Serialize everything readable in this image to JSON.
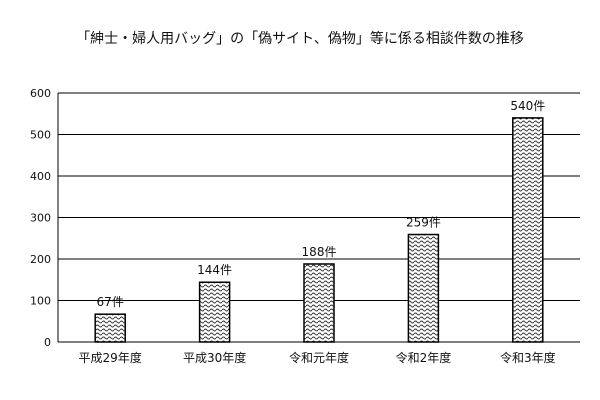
{
  "chart_data": {
    "type": "bar",
    "title": "「紳士・婦人用バッグ」の「偽サイト、偽物」等に係る相談件数の推移",
    "categories": [
      "平成29年度",
      "平成30年度",
      "令和元年度",
      "令和2年度",
      "令和3年度"
    ],
    "values": [
      67,
      144,
      188,
      259,
      540
    ],
    "data_labels": [
      "67件",
      "144件",
      "188件",
      "259件",
      "540件"
    ],
    "xlabel": "",
    "ylabel": "",
    "ylim": [
      0,
      600
    ],
    "yticks": [
      0,
      100,
      200,
      300,
      400,
      500,
      600
    ],
    "grid": true,
    "legend": "none",
    "colors": {
      "bar_fill": "#ffffff",
      "bar_pattern": "#333333",
      "bar_stroke": "#000000",
      "grid": "#000000",
      "axis": "#000000"
    }
  }
}
